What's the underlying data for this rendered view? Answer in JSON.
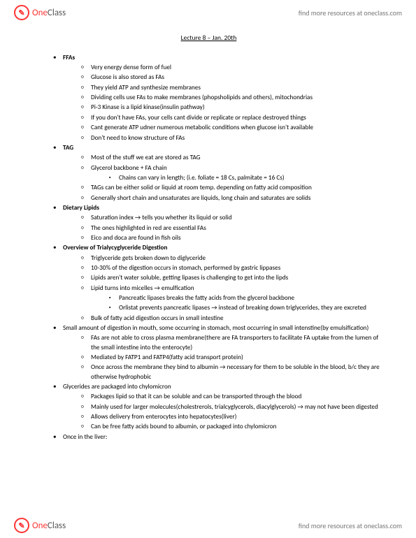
{
  "brand": {
    "logo_one": "One",
    "logo_class": "Class",
    "tagline": "find more resources at oneclass.com"
  },
  "title": "Lecture 8 – Jan. 20th",
  "sections": [
    {
      "heading": "FFAs",
      "items": [
        {
          "t": "Very energy dense form of fuel"
        },
        {
          "t": "Glucose is also stored as FAs"
        },
        {
          "t": "They yield ATP and synthesize membranes"
        },
        {
          "t": "Dividing cells use FAs to make membranes (phopsholipids and others), mitochondrias"
        },
        {
          "t": "Pi-3 Kinase is a lipid kinase(insulin pathway)"
        },
        {
          "t": "If you don't have FAs, your cells cant divide or replicate or replace destroyed things"
        },
        {
          "t": "Cant generate ATP udner numerous metabolic conditions when glucose isn't available"
        },
        {
          "t": "Don't need to know structure of FAs"
        }
      ]
    },
    {
      "heading": "TAG",
      "items": [
        {
          "t": "Most of the stuff we eat are stored as TAG"
        },
        {
          "t": "Glycerol backbone + FA chain",
          "sub": [
            {
              "t": "Chains can vary in length; (i.e. foliate = 18 Cs, palmitate = 16 Cs)"
            }
          ]
        },
        {
          "t": "TAGs can be either solid or liquid at room temp. depending on fatty acid composition"
        },
        {
          "t": "Generally short chain and unsaturates are liquids, long chain and saturates are solids"
        }
      ]
    },
    {
      "heading": "Dietary Lipids",
      "items": [
        {
          "t": "Saturation index → tells you whether its liquid or solid"
        },
        {
          "t": "The ones highlighted in red are essential FAs"
        },
        {
          "t": "Eico and doca are found in fish oils"
        }
      ]
    },
    {
      "heading": "Overview of Trialycyglyceride Digestion",
      "items": [
        {
          "t": "Triglyceride gets broken down to diglyceride"
        },
        {
          "t": "10-30% of the digestion occurs in stomach, performed by gastric lippases"
        },
        {
          "t": "Lipids aren't water soluble, getting lipases is challenging to get into the lipds"
        },
        {
          "t": "Lipid turns into micelles → emulfication",
          "sub": [
            {
              "t": "Pancreatic lipases breaks the fatty acids from the glycerol backbone"
            },
            {
              "t": "Orlistat prevents pancreatic lipases → instead of breaking down triglycerides, they are excreted"
            }
          ]
        },
        {
          "t": "Bulk of fatty acid digestion occurs in small intestine"
        }
      ]
    },
    {
      "heading": "",
      "plain": "Small amount of digestion in mouth, some occurring in stomach, most occurring in small intenstine(by emulsification)",
      "items": [
        {
          "t": "FAs are not able to cross plasma membrane(there are FA transporters to facilitate FA uptake from the lumen of the small intestine into the enterocyte)"
        },
        {
          "t": "Mediated by FATP1 and FATP4(fatty acid transport protein)"
        },
        {
          "t": "Once across the membrane they bind to albumin → necessary for them to be soluble in the blood, b/c they are otherwise hydrophobic"
        }
      ]
    },
    {
      "heading": "",
      "plain": "Glycerides are packaged into chylomicron",
      "items": [
        {
          "t": "Packages lipid so that it can be  soluble and can be transported through the blood"
        },
        {
          "t": "Mainly used for larger molecules(cholestrerols, trialcyglycerols, diacylglycerols) →  may not have been digested"
        },
        {
          "t": "Allows delivery from enterocytes into hepatocytes(liver)"
        },
        {
          "t": "Can be free fatty acids bound to albumin, or packaged into chylomicron"
        }
      ]
    },
    {
      "heading": "",
      "plain": "Once in the liver:",
      "items": []
    }
  ]
}
